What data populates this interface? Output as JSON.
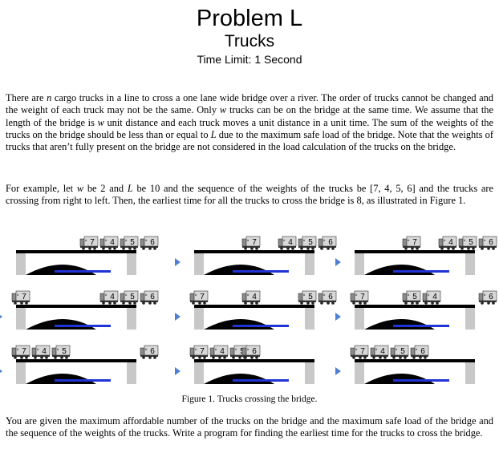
{
  "header": {
    "title": "Problem L",
    "subtitle": "Trucks",
    "time_limit": "Time Limit: 1 Second"
  },
  "paragraphs": {
    "p1": [
      {
        "t": "There are "
      },
      {
        "t": "n",
        "i": true
      },
      {
        "t": " cargo trucks in a line to cross a one lane wide bridge over a river. The order of trucks cannot be changed and the weight of each truck may not be the same. Only "
      },
      {
        "t": "w",
        "i": true
      },
      {
        "t": " trucks can be on the bridge at the same time. We assume that the length of the bridge is "
      },
      {
        "t": "w",
        "i": true
      },
      {
        "t": " unit distance and each truck moves a unit distance in a unit time. The sum of the weights of the trucks on the bridge should be less than or equal to "
      },
      {
        "t": "L",
        "i": true
      },
      {
        "t": " due to the maximum safe load of the bridge. Note that the weights of trucks that aren’t fully present on the bridge are not considered in the load calculation of the trucks on the bridge."
      }
    ],
    "p2": [
      {
        "t": "For example, let "
      },
      {
        "t": "w",
        "i": true
      },
      {
        "t": " be 2 and "
      },
      {
        "t": "L",
        "i": true
      },
      {
        "t": " be 10 and the sequence of the weights of the trucks be [7, 4, 5, 6] and the trucks are crossing from right to left. Then, the earliest time for all the trucks to cross the bridge is 8, as illustrated in Figure 1."
      }
    ],
    "p3": [
      {
        "t": "You are given the maximum affordable number of the trucks on the bridge and the maximum safe load of the bridge and the sequence of the weights of the trucks. Write a program for finding the earliest time for the trucks to cross the bridge."
      }
    ]
  },
  "figure": {
    "caption": "Figure 1. Trucks crossing the bridge.",
    "truck_label_prefix": "#",
    "frames": [
      {
        "left": [
          "7",
          "4",
          "5",
          "6"
        ],
        "bridge": [],
        "right": []
      },
      {
        "left": [
          "4",
          "5",
          "6"
        ],
        "bridge": [
          "7"
        ],
        "right": []
      },
      {
        "left": [
          "4",
          "5",
          "6"
        ],
        "bridge": [
          "7"
        ],
        "right": []
      },
      {
        "left": [
          "4",
          "5",
          "6"
        ],
        "bridge": [],
        "right": [
          "7"
        ]
      },
      {
        "left": [
          "5",
          "6"
        ],
        "bridge": [
          "4"
        ],
        "right": [
          "7"
        ]
      },
      {
        "left": [
          "6"
        ],
        "bridge": [
          "5",
          "4"
        ],
        "right": [
          "7"
        ]
      },
      {
        "left": [
          "6"
        ],
        "bridge": [],
        "right": [
          "7",
          "4",
          "5"
        ]
      },
      {
        "left": [],
        "bridge": [
          "6"
        ],
        "right": [
          "7",
          "4",
          "5"
        ]
      },
      {
        "left": [],
        "bridge": [],
        "right": [
          "7",
          "4",
          "5",
          "6"
        ]
      }
    ]
  },
  "colors": {
    "text": "#000000",
    "arrow": "#4f7fd4",
    "water": "#1f33d6",
    "truck_cab": "#8a8a8a",
    "truck_box": "#d8d8d8",
    "pillar": "#c8c8c8"
  }
}
